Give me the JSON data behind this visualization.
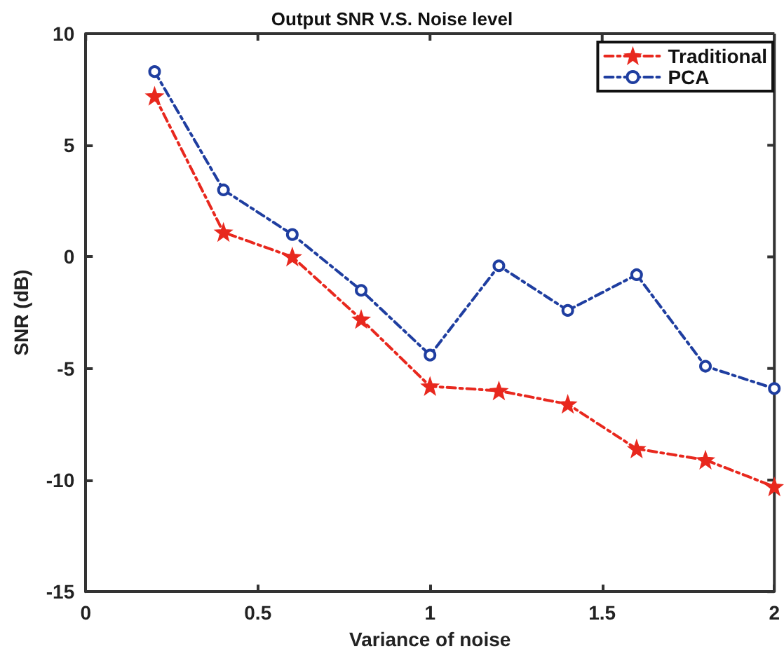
{
  "chart_data": {
    "type": "line",
    "title": "Output SNR V.S. Noise level",
    "xlabel": "Variance of noise",
    "ylabel": "SNR (dB)",
    "x": [
      0.2,
      0.4,
      0.6,
      0.8,
      1.0,
      1.2,
      1.4,
      1.6,
      1.8,
      2.0
    ],
    "series": [
      {
        "name": "Traditional",
        "color": "#e8281e",
        "marker": "star",
        "values": [
          7.2,
          1.1,
          0.0,
          -2.8,
          -5.8,
          -6.0,
          -6.6,
          -8.6,
          -9.1,
          -10.3
        ]
      },
      {
        "name": "PCA",
        "color": "#1f3ea0",
        "marker": "circle",
        "values": [
          8.3,
          3.0,
          1.0,
          -1.5,
          -4.4,
          -0.4,
          -2.4,
          -0.8,
          -4.9,
          -5.9
        ]
      }
    ],
    "xlim": [
      0,
      2
    ],
    "xticks": [
      0,
      0.5,
      1,
      1.5,
      2
    ],
    "ylim": [
      -15,
      10
    ],
    "yticks": [
      -15,
      -10,
      -5,
      0,
      5,
      10
    ],
    "line_style": "dashed",
    "grid": false,
    "legend": "top right"
  }
}
